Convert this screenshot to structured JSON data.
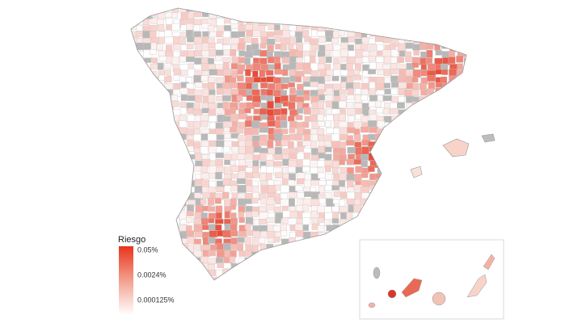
{
  "legend": {
    "title": "Riesgo",
    "labels": [
      "0.05%",
      "0.0024%",
      "0.000125%"
    ]
  }
}
